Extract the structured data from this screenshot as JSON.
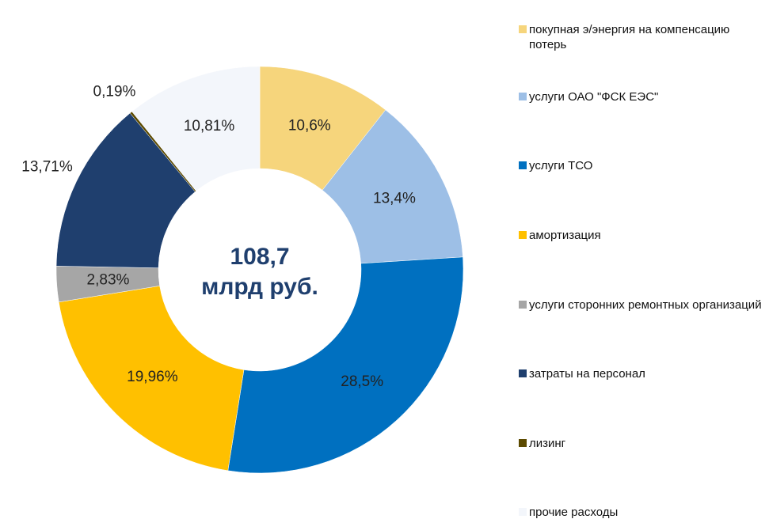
{
  "chart_data": {
    "type": "donut",
    "center_text": [
      "108,7",
      "млрд руб."
    ],
    "categories": [
      "покупная э/энергия на компенсацию потерь",
      "услуги ОАО \"ФСК ЕЭС\"",
      "услуги ТСО",
      "амортизация",
      "услуги сторонних ремонтных организаций",
      "затраты на персонал",
      "лизинг",
      "прочие расходы"
    ],
    "values": [
      10.6,
      13.4,
      28.5,
      19.96,
      2.83,
      13.71,
      0.19,
      10.81
    ],
    "value_labels": [
      "10,6%",
      "13,4%",
      "28,5%",
      "19,96%",
      "2,83%",
      "13,71%",
      "0,19%",
      "10,81%"
    ],
    "colors": [
      "#f6d57c",
      "#9dbfe6",
      "#0070c0",
      "#ffc000",
      "#a6a6a6",
      "#1f3f6e",
      "#5c4a00",
      "#f3f6fb"
    ],
    "legend": "right"
  }
}
